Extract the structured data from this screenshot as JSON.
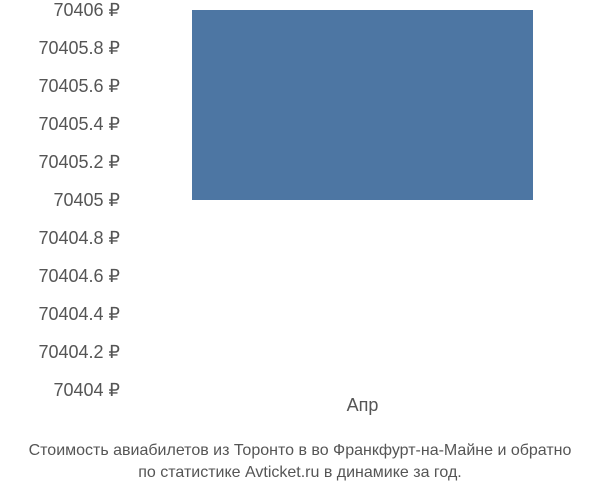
{
  "chart": {
    "type": "bar",
    "y_axis": {
      "min": 70404,
      "max": 70406,
      "tick_step": 0.2,
      "labels": [
        "70406 ₽",
        "70405.8 ₽",
        "70405.6 ₽",
        "70405.4 ₽",
        "70405.2 ₽",
        "70405 ₽",
        "70404.8 ₽",
        "70404.6 ₽",
        "70404.4 ₽",
        "70404.2 ₽",
        "70404 ₽"
      ],
      "label_color": "#555555",
      "label_fontsize": 18
    },
    "x_axis": {
      "categories": [
        "Апр"
      ],
      "label_color": "#555555",
      "label_fontsize": 18
    },
    "series": {
      "values": [
        70406
      ],
      "bar_color": "#4d76a3",
      "bar_width_fraction": 0.75,
      "baseline": 70405
    },
    "plot": {
      "background_color": "#ffffff",
      "grid": false
    }
  },
  "caption": {
    "line1": "Стоимость авиабилетов из Торонто в во Франкфурт-на-Майне и обратно",
    "line2": "по статистике Avticket.ru в динамике за год.",
    "color": "#555555",
    "fontsize": 16
  }
}
